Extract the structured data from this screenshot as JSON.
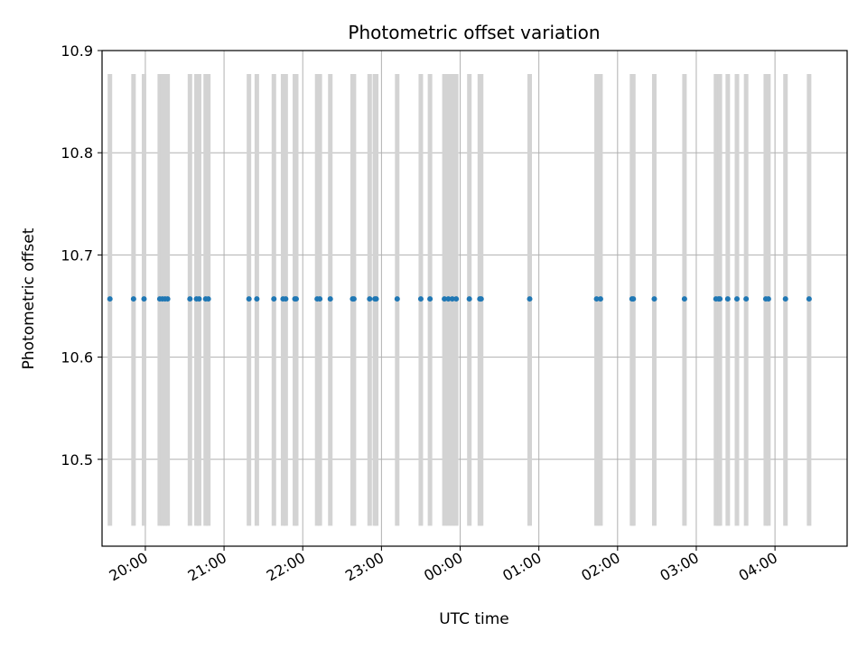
{
  "chart_data": {
    "type": "scatter",
    "title": "Photometric offset variation",
    "xlabel": "UTC time",
    "ylabel": "Photometric offset",
    "x_unit": "UTC time (HH:MM), night spanning midnight",
    "x_range": [
      "19:27",
      "04:55"
    ],
    "ylim": [
      10.415,
      10.9
    ],
    "y_ticks": [
      10.5,
      10.6,
      10.7,
      10.8,
      10.9
    ],
    "x_ticks": [
      "20:00",
      "21:00",
      "22:00",
      "23:00",
      "00:00",
      "01:00",
      "02:00",
      "03:00",
      "04:00"
    ],
    "grid": true,
    "colors": {
      "points": "#1f77b4",
      "error_bars": "#d3d3d3",
      "grid": "#b0b0b0"
    },
    "series": [
      {
        "y_value": 10.657,
        "y_error_low": 10.435,
        "y_error_high": 10.877,
        "x": [
          "19:33",
          "19:51",
          "19:59",
          "20:11",
          "20:13",
          "20:15",
          "20:17",
          "20:34",
          "20:39",
          "20:41",
          "20:46",
          "20:48",
          "21:19",
          "21:25",
          "21:38",
          "21:45",
          "21:47",
          "21:54",
          "21:55",
          "22:11",
          "22:13",
          "22:21",
          "22:38",
          "22:39",
          "22:51",
          "22:55",
          "22:56",
          "23:12",
          "23:30",
          "23:37",
          "23:48",
          "23:51",
          "23:54",
          "23:57",
          "00:07",
          "00:15",
          "00:16",
          "00:53",
          "01:44",
          "01:47",
          "02:11",
          "02:12",
          "02:28",
          "02:51",
          "03:15",
          "03:17",
          "03:18",
          "03:24",
          "03:31",
          "03:38",
          "03:53",
          "03:55",
          "04:08",
          "04:26"
        ]
      }
    ]
  }
}
